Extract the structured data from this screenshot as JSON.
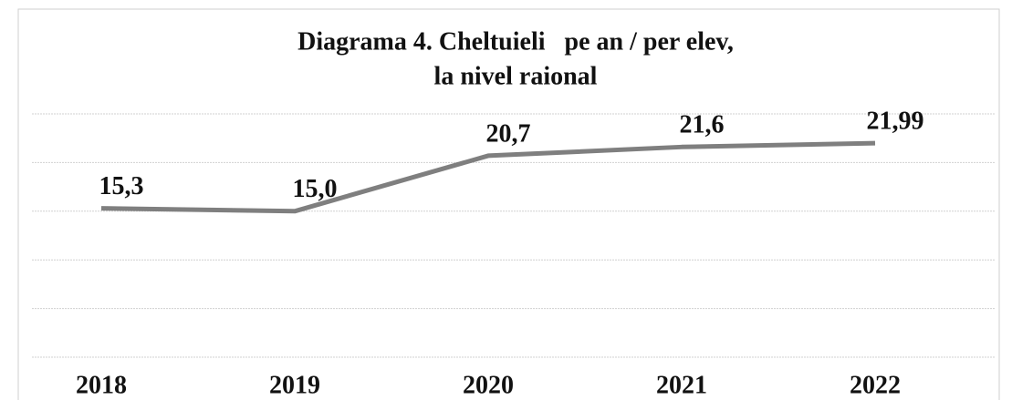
{
  "chart_data": {
    "type": "line",
    "title": [
      "Diagrama 4. Cheltuieli   pe an / per elev,",
      "la nivel raional"
    ],
    "categories": [
      "2018",
      "2019",
      "2020",
      "2021",
      "2022"
    ],
    "values": [
      15.3,
      15.0,
      20.7,
      21.6,
      21.99
    ],
    "value_labels": [
      "15,3",
      "15,0",
      "20,7",
      "21,6",
      "21,99"
    ],
    "color": "#7f7f7f",
    "ylim": [
      0,
      25
    ],
    "yticks": [
      0,
      5,
      10,
      15,
      20,
      25
    ],
    "grid": true
  }
}
